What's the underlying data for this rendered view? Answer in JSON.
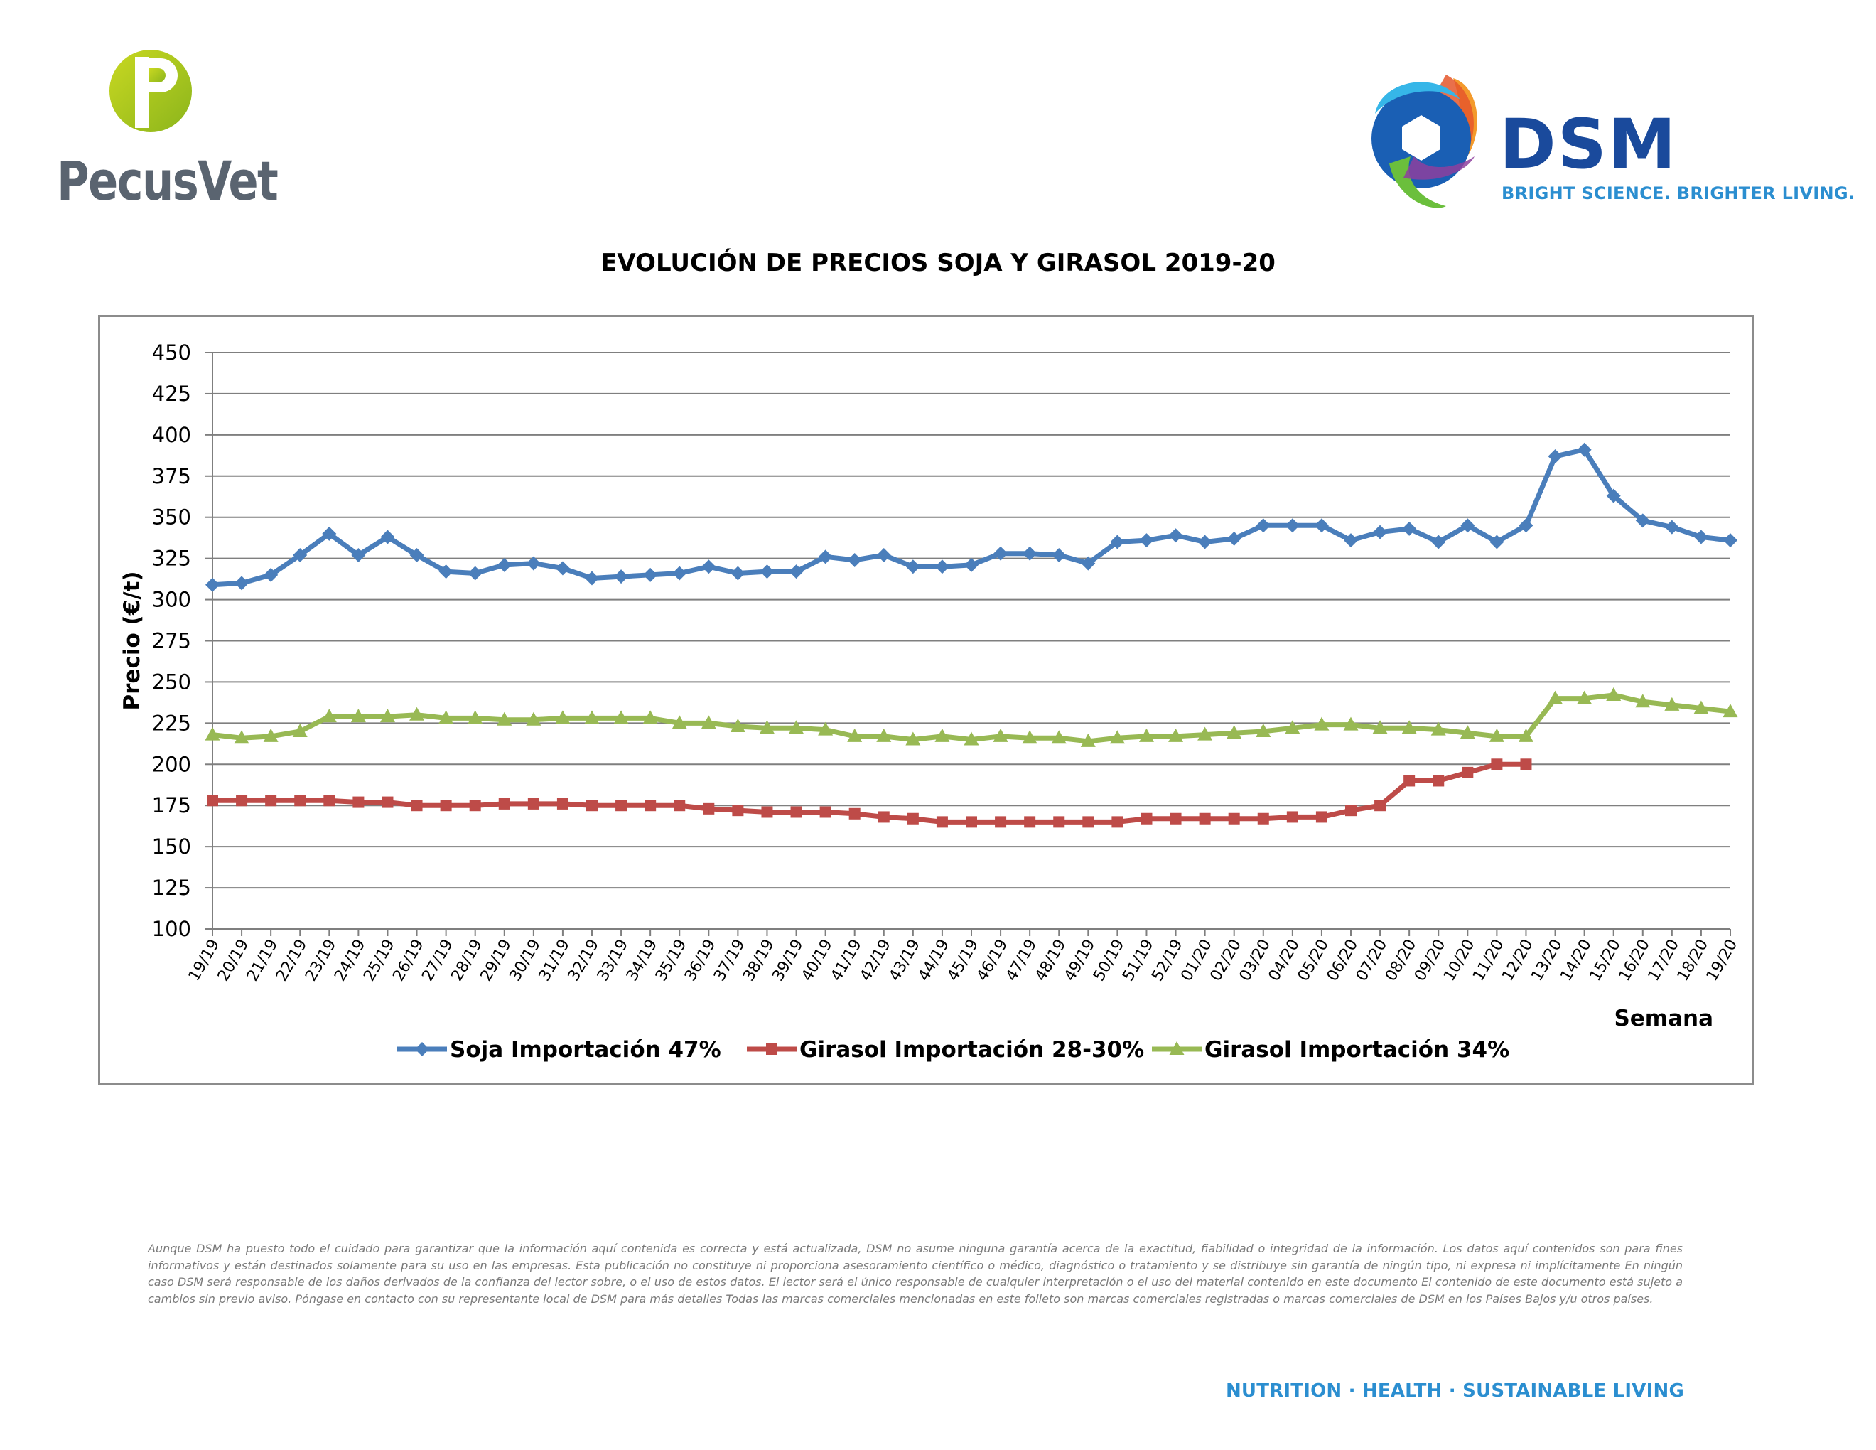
{
  "logos": {
    "left_name": "PecusVet",
    "right_name": "DSM",
    "right_tagline": "BRIGHT SCIENCE. BRIGHTER LIVING."
  },
  "chart_data": {
    "type": "line",
    "title": "EVOLUCIÓN DE PRECIOS SOJA Y GIRASOL 2019-20",
    "xlabel": "Semana",
    "ylabel": "Precio (€/t)",
    "ylim": [
      100,
      450
    ],
    "yticks": [
      100,
      125,
      150,
      175,
      200,
      225,
      250,
      275,
      300,
      325,
      350,
      375,
      400,
      425,
      450
    ],
    "grid": "horizontal",
    "legend_position": "bottom",
    "categories": [
      "19/19",
      "20/19",
      "21/19",
      "22/19",
      "23/19",
      "24/19",
      "25/19",
      "26/19",
      "27/19",
      "28/19",
      "29/19",
      "30/19",
      "31/19",
      "32/19",
      "33/19",
      "34/19",
      "35/19",
      "36/19",
      "37/19",
      "38/19",
      "39/19",
      "40/19",
      "41/19",
      "42/19",
      "43/19",
      "44/19",
      "45/19",
      "46/19",
      "47/19",
      "48/19",
      "49/19",
      "50/19",
      "51/19",
      "52/19",
      "01/20",
      "02/20",
      "03/20",
      "04/20",
      "05/20",
      "06/20",
      "07/20",
      "08/20",
      "09/20",
      "10/20",
      "11/20",
      "12/20",
      "13/20",
      "14/20",
      "15/20",
      "16/20",
      "17/20",
      "18/20",
      "19/20"
    ],
    "series": [
      {
        "name": "Soja Importación 47%",
        "color": "#4a7ebb",
        "marker": "diamond",
        "values": [
          309,
          310,
          315,
          327,
          340,
          327,
          338,
          327,
          317,
          316,
          321,
          322,
          319,
          313,
          314,
          315,
          316,
          320,
          316,
          317,
          317,
          326,
          324,
          327,
          320,
          320,
          321,
          328,
          328,
          327,
          322,
          335,
          336,
          339,
          335,
          337,
          345,
          345,
          345,
          336,
          341,
          343,
          335,
          345,
          335,
          345,
          387,
          391,
          363,
          348,
          344,
          338,
          336
        ]
      },
      {
        "name": "Girasol Importación 28-30%",
        "color": "#be4b48",
        "marker": "square",
        "values": [
          178,
          178,
          178,
          178,
          178,
          177,
          177,
          175,
          175,
          175,
          176,
          176,
          176,
          175,
          175,
          175,
          175,
          173,
          172,
          171,
          171,
          171,
          170,
          168,
          167,
          165,
          165,
          165,
          165,
          165,
          165,
          165,
          167,
          167,
          167,
          167,
          167,
          168,
          168,
          172,
          175,
          190,
          190,
          195,
          200,
          200,
          null,
          null,
          null,
          null,
          null,
          null,
          null
        ]
      },
      {
        "name": "Girasol Importación 34%",
        "color": "#98b954",
        "marker": "triangle",
        "values": [
          218,
          216,
          217,
          220,
          229,
          229,
          229,
          230,
          228,
          228,
          227,
          227,
          228,
          228,
          228,
          228,
          225,
          225,
          223,
          222,
          222,
          221,
          217,
          217,
          215,
          217,
          215,
          217,
          216,
          216,
          214,
          216,
          217,
          217,
          218,
          219,
          220,
          222,
          224,
          224,
          222,
          222,
          221,
          219,
          217,
          217,
          240,
          240,
          242,
          238,
          236,
          234,
          232
        ]
      }
    ]
  },
  "disclaimer": "Aunque DSM ha puesto todo el cuidado para garantizar que la información aquí contenida es correcta y está actualizada, DSM no asume ninguna garantía acerca de la exactitud, fiabilidad o integridad de la información. Los datos aquí contenidos son para fines informativos y están destinados solamente para su uso en las empresas. Esta publicación no constituye ni proporciona asesoramiento científico o médico, diagnóstico o tratamiento y se distribuye sin garantía de ningún tipo, ni expresa ni implícitamente En ningún caso DSM será responsable de los daños derivados de la confianza del lector sobre, o el uso de estos datos. El lector será el único responsable de cualquier interpretación o el uso del material contenido en este documento El contenido de este documento está sujeto a cambios sin previo aviso. Póngase en contacto con su representante local de DSM para más detalles Todas las marcas comerciales mencionadas en este folleto son marcas comerciales registradas o marcas comerciales de DSM en los Países Bajos y/u otros países.",
  "footer_tagline": "NUTRITION · HEALTH · SUSTAINABLE LIVING"
}
